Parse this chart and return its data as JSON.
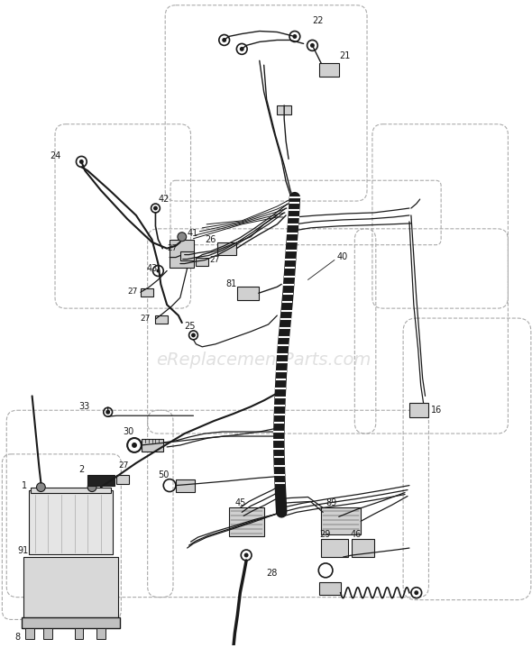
{
  "bg_color": "#ffffff",
  "diagram_color": "#1a1a1a",
  "dash_color": "#aaaaaa",
  "watermark": "eReplacementParts.com",
  "watermark_color": "#cccccc",
  "fig_width": 5.9,
  "fig_height": 7.19,
  "dpi": 100
}
